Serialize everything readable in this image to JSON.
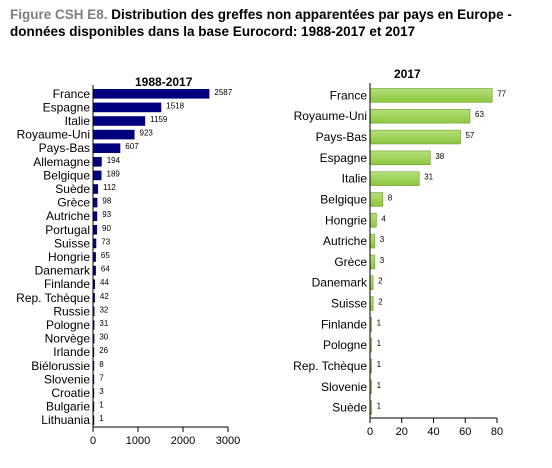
{
  "figure": {
    "label": "Figure CSH E8.",
    "caption": "Distribution des greffes non apparentées par pays en Europe - données disponibles dans la base Eurocord: 1988-2017 et 2017"
  },
  "chart_data": [
    {
      "type": "bar",
      "orientation": "horizontal",
      "title": "1988-2017",
      "color": "#00007f",
      "categories": [
        "France",
        "Espagne",
        "Italie",
        "Royaume-Uni",
        "Pays-Bas",
        "Allemagne",
        "Belgique",
        "Suède",
        "Grèce",
        "Autriche",
        "Portugal",
        "Suisse",
        "Hongrie",
        "Danemark",
        "Finlande",
        "Rep. Tchèque",
        "Russie",
        "Pologne",
        "Norvège",
        "Irlande",
        "Biélorussie",
        "Slovenie",
        "Croatie",
        "Bulgarie",
        "Lithuania"
      ],
      "values": [
        2587,
        1518,
        1159,
        923,
        607,
        194,
        189,
        112,
        98,
        93,
        90,
        73,
        65,
        64,
        44,
        42,
        32,
        31,
        30,
        26,
        8,
        7,
        3,
        1,
        1
      ],
      "xlim": [
        0,
        3000
      ],
      "xticks": [
        "0",
        "1000",
        "2000",
        "3000"
      ]
    },
    {
      "type": "bar",
      "orientation": "horizontal",
      "title": "2017",
      "color": "#8dc63f",
      "categories": [
        "France",
        "Royaume-Uni",
        "Pays-Bas",
        "Espagne",
        "Italie",
        "Belgique",
        "Hongrie",
        "Autriche",
        "Grèce",
        "Danemark",
        "Suisse",
        "Finlande",
        "Pologne",
        "Rep. Tchèque",
        "Slovenie",
        "Suède"
      ],
      "values": [
        77,
        63,
        57,
        38,
        31,
        8,
        4,
        3,
        3,
        2,
        2,
        1,
        1,
        1,
        1,
        1
      ],
      "xlim": [
        0,
        80
      ],
      "xticks": [
        "0",
        "20",
        "40",
        "60",
        "80"
      ]
    }
  ]
}
